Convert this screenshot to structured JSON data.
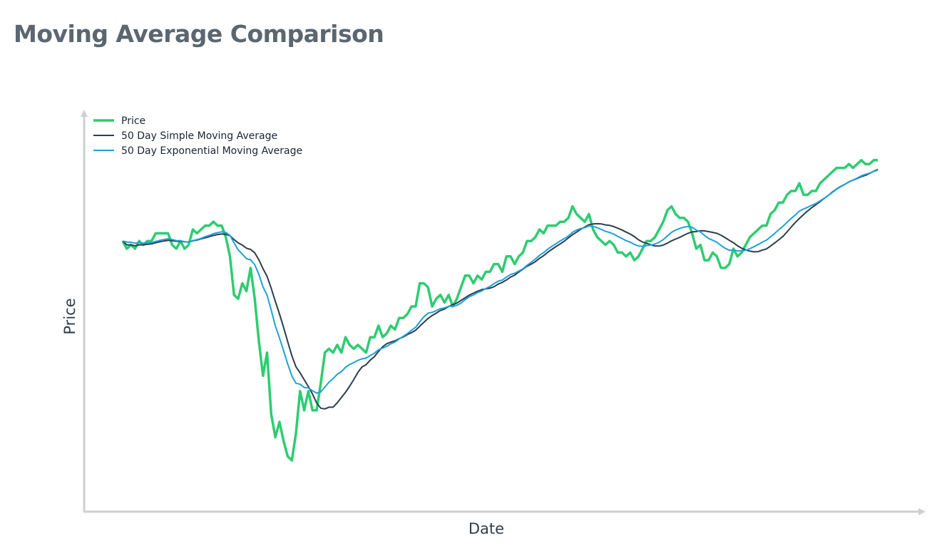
{
  "title": "Moving Average Comparison",
  "chart_data": {
    "type": "line",
    "title": "Moving Average Comparison",
    "xlabel": "Date",
    "ylabel": "Price",
    "x_ticks": "none",
    "y_ticks": "none",
    "grid": false,
    "legend_position": "top-left",
    "xlim": [
      0,
      220
    ],
    "ylim": [
      0,
      100
    ],
    "series": [
      {
        "name": "Price",
        "color": "#2ecc71",
        "y": [
          67,
          65,
          66,
          65,
          67,
          66,
          67,
          67,
          69,
          69,
          69,
          69,
          66,
          65,
          67,
          65,
          66,
          70,
          69,
          70,
          71,
          71,
          72,
          71,
          71,
          68,
          63,
          53,
          52,
          56,
          54,
          60,
          52,
          41,
          32,
          38,
          22,
          16,
          20,
          15,
          11,
          10,
          17,
          28,
          23,
          28,
          23,
          23,
          30,
          38,
          39,
          38,
          40,
          38,
          42,
          40,
          39,
          40,
          39,
          38,
          42,
          42,
          45,
          42,
          43,
          45,
          44,
          47,
          47,
          48,
          50,
          50,
          56,
          56,
          55,
          50,
          52,
          53,
          51,
          53,
          50,
          52,
          55,
          58,
          58,
          56,
          58,
          57,
          59,
          59,
          61,
          61,
          59,
          63,
          63,
          61,
          63,
          64,
          67,
          67,
          68,
          70,
          69,
          71,
          71,
          71,
          72,
          72,
          73,
          76,
          74,
          73,
          72,
          74,
          70,
          68,
          67,
          66,
          67,
          66,
          64,
          64,
          63,
          64,
          62,
          63,
          65,
          67,
          67,
          68,
          70,
          72,
          75,
          76,
          74,
          73,
          73,
          72,
          69,
          65,
          66,
          62,
          62,
          64,
          63,
          60,
          60,
          61,
          65,
          63,
          64,
          66,
          68,
          69,
          70,
          71,
          71,
          74,
          75,
          77,
          77,
          79,
          80,
          80,
          82,
          79,
          79,
          80,
          80,
          82,
          83,
          84,
          85,
          86,
          86,
          86,
          87,
          86,
          87,
          88,
          87,
          87,
          88,
          88
        ],
        "note": "sample"
      },
      {
        "name": "50 Day Simple Moving Average",
        "color": "#2f3d4c",
        "values": "computed"
      },
      {
        "name": "50 Day Exponential Moving Average",
        "color": "#1ea0dc",
        "values": "computed"
      }
    ]
  }
}
